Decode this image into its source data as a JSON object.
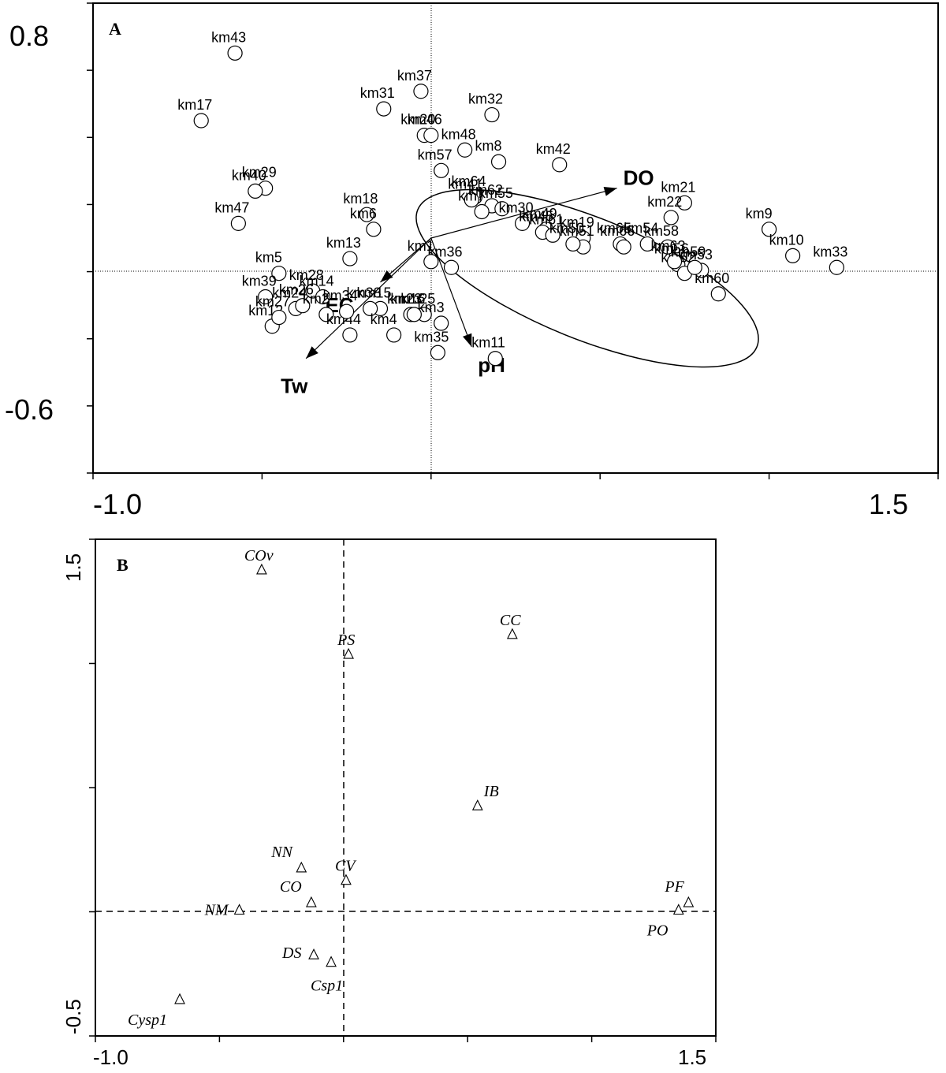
{
  "chart_data": [
    {
      "type": "scatter",
      "panel_label": "A",
      "xlim": [
        -1.0,
        1.5
      ],
      "ylim": [
        -0.8,
        0.8
      ],
      "x_tick_labels": [
        "-1.0",
        "1.5"
      ],
      "y_tick_labels": [
        "0.8",
        "-0.6"
      ],
      "sites": [
        {
          "label": "km43",
          "x": -0.58,
          "y": 0.63
        },
        {
          "label": "km17",
          "x": -0.68,
          "y": 0.4
        },
        {
          "label": "km37",
          "x": -0.03,
          "y": 0.5
        },
        {
          "label": "km31",
          "x": -0.14,
          "y": 0.44
        },
        {
          "label": "km32",
          "x": 0.18,
          "y": 0.42
        },
        {
          "label": "km20",
          "x": -0.02,
          "y": 0.35
        },
        {
          "label": "km46",
          "x": 0.0,
          "y": 0.35
        },
        {
          "label": "km48",
          "x": 0.1,
          "y": 0.3
        },
        {
          "label": "km57",
          "x": 0.03,
          "y": 0.23
        },
        {
          "label": "km8",
          "x": 0.2,
          "y": 0.26
        },
        {
          "label": "km42",
          "x": 0.38,
          "y": 0.25
        },
        {
          "label": "km64",
          "x": 0.13,
          "y": 0.14
        },
        {
          "label": "km41",
          "x": 0.12,
          "y": 0.13
        },
        {
          "label": "km62",
          "x": 0.18,
          "y": 0.11
        },
        {
          "label": "km7",
          "x": 0.15,
          "y": 0.09
        },
        {
          "label": "km55",
          "x": 0.21,
          "y": 0.1
        },
        {
          "label": "km29",
          "x": -0.49,
          "y": 0.17
        },
        {
          "label": "km40",
          "x": -0.52,
          "y": 0.16
        },
        {
          "label": "km47",
          "x": -0.57,
          "y": 0.05
        },
        {
          "label": "km18",
          "x": -0.19,
          "y": 0.08
        },
        {
          "label": "km6",
          "x": -0.17,
          "y": 0.03
        },
        {
          "label": "km30",
          "x": 0.27,
          "y": 0.05
        },
        {
          "label": "km49",
          "x": 0.34,
          "y": 0.03
        },
        {
          "label": "km45",
          "x": 0.33,
          "y": 0.02
        },
        {
          "label": "km21",
          "x": 0.75,
          "y": 0.12
        },
        {
          "label": "km22",
          "x": 0.71,
          "y": 0.07
        },
        {
          "label": "km9",
          "x": 1.0,
          "y": 0.03
        },
        {
          "label": "km61",
          "x": 0.36,
          "y": 0.01
        },
        {
          "label": "km19",
          "x": 0.45,
          "y": 0.0
        },
        {
          "label": "km58",
          "x": 0.7,
          "y": -0.03
        },
        {
          "label": "km54",
          "x": 0.64,
          "y": -0.02
        },
        {
          "label": "km10",
          "x": 1.07,
          "y": -0.06
        },
        {
          "label": "km33",
          "x": 1.2,
          "y": -0.1
        },
        {
          "label": "km51",
          "x": 0.45,
          "y": -0.03
        },
        {
          "label": "km65",
          "x": 0.56,
          "y": -0.02
        },
        {
          "label": "km56",
          "x": 0.73,
          "y": -0.09
        },
        {
          "label": "km53",
          "x": 0.8,
          "y": -0.11
        },
        {
          "label": "km50",
          "x": 0.42,
          "y": -0.02
        },
        {
          "label": "km66",
          "x": 0.57,
          "y": -0.03
        },
        {
          "label": "km60",
          "x": 0.85,
          "y": -0.19
        },
        {
          "label": "km52",
          "x": 0.75,
          "y": -0.12
        },
        {
          "label": "km63",
          "x": 0.72,
          "y": -0.08
        },
        {
          "label": "km59",
          "x": 0.78,
          "y": -0.1
        },
        {
          "label": "km5",
          "x": -0.45,
          "y": -0.12
        },
        {
          "label": "km13",
          "x": -0.24,
          "y": -0.07
        },
        {
          "label": "km28",
          "x": -0.35,
          "y": -0.18
        },
        {
          "label": "km39",
          "x": -0.49,
          "y": -0.2
        },
        {
          "label": "km36",
          "x": 0.06,
          "y": -0.1
        },
        {
          "label": "km1",
          "x": 0.0,
          "y": -0.08
        },
        {
          "label": "km25",
          "x": -0.02,
          "y": -0.26
        },
        {
          "label": "km15",
          "x": -0.15,
          "y": -0.24
        },
        {
          "label": "km24",
          "x": -0.4,
          "y": -0.24
        },
        {
          "label": "km26",
          "x": -0.38,
          "y": -0.23
        },
        {
          "label": "km14",
          "x": -0.32,
          "y": -0.2
        },
        {
          "label": "km2",
          "x": -0.31,
          "y": -0.26
        },
        {
          "label": "km12",
          "x": -0.47,
          "y": -0.3
        },
        {
          "label": "km38",
          "x": -0.18,
          "y": -0.24
        },
        {
          "label": "km44",
          "x": -0.24,
          "y": -0.33
        },
        {
          "label": "km4",
          "x": -0.11,
          "y": -0.33
        },
        {
          "label": "km27",
          "x": -0.45,
          "y": -0.27
        },
        {
          "label": "km3",
          "x": 0.03,
          "y": -0.29
        },
        {
          "label": "km34",
          "x": -0.25,
          "y": -0.25
        },
        {
          "label": "km23",
          "x": -0.06,
          "y": -0.26
        },
        {
          "label": "km16",
          "x": -0.05,
          "y": -0.26
        },
        {
          "label": "km35",
          "x": 0.02,
          "y": -0.39
        },
        {
          "label": "km11",
          "x": 0.19,
          "y": -0.41
        }
      ],
      "vectors": [
        {
          "label": "DO",
          "x": 0.55,
          "y": 0.17
        },
        {
          "label": "EC",
          "x": -0.15,
          "y": -0.15
        },
        {
          "label": "Tw",
          "x": -0.37,
          "y": -0.41
        },
        {
          "label": "pH",
          "x": 0.12,
          "y": -0.37
        }
      ]
    },
    {
      "type": "scatter",
      "panel_label": "B",
      "xlim": [
        -1.0,
        1.5
      ],
      "ylim": [
        -0.5,
        1.5
      ],
      "x_tick_labels": [
        "-1.0",
        "1.5"
      ],
      "y_tick_labels": [
        "1.5",
        "-0.5"
      ],
      "species": [
        {
          "label": "COv",
          "x": -0.33,
          "y": 1.37
        },
        {
          "label": "PS",
          "x": 0.02,
          "y": 1.03
        },
        {
          "label": "CC",
          "x": 0.68,
          "y": 1.11
        },
        {
          "label": "IB",
          "x": 0.54,
          "y": 0.42
        },
        {
          "label": "NN",
          "x": -0.17,
          "y": 0.17
        },
        {
          "label": "CV",
          "x": 0.01,
          "y": 0.12
        },
        {
          "label": "CO",
          "x": -0.13,
          "y": 0.03
        },
        {
          "label": "NM",
          "x": -0.42,
          "y": 0.0
        },
        {
          "label": "PF",
          "x": 1.39,
          "y": 0.03
        },
        {
          "label": "PO",
          "x": 1.35,
          "y": 0.0
        },
        {
          "label": "DS",
          "x": -0.12,
          "y": -0.18
        },
        {
          "label": "Csp1",
          "x": -0.05,
          "y": -0.21
        },
        {
          "label": "Cysp1",
          "x": -0.66,
          "y": -0.36
        }
      ]
    }
  ]
}
